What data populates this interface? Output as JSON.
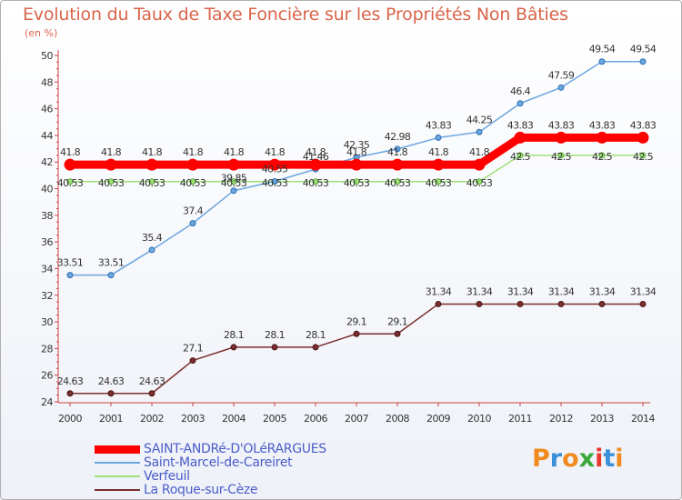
{
  "title": "Evolution du Taux de Taxe Foncière sur les Propriétés Non Bâties",
  "subtitle": "(en %)",
  "logo": {
    "text": "Proxiti",
    "colors": [
      "#f18b1f",
      "#3b8fd8",
      "#f18b1f",
      "#3aa838",
      "#e8372d",
      "#3b8fd8",
      "#f18b1f"
    ]
  },
  "chart_data": {
    "type": "line",
    "x": [
      "2000",
      "2001",
      "2002",
      "2003",
      "2004",
      "2005",
      "2006",
      "2007",
      "2008",
      "2009",
      "2010",
      "2011",
      "2012",
      "2013",
      "2014"
    ],
    "ylim": [
      24,
      50
    ],
    "yticks": [
      24,
      26,
      28,
      30,
      32,
      34,
      36,
      38,
      40,
      42,
      44,
      46,
      48,
      50
    ],
    "grid": false,
    "legend_position": "bottom-left",
    "series": [
      {
        "name": "SAINT-ANDRé-D'OLéRARGUES",
        "color": "#ff0000",
        "values": [
          41.8,
          41.8,
          41.8,
          41.8,
          41.8,
          41.8,
          41.8,
          41.8,
          41.8,
          41.8,
          41.8,
          43.83,
          43.83,
          43.83,
          43.83
        ],
        "labels": [
          "41.8",
          "41.8",
          "41.8",
          "41.8",
          "41.8",
          "41.8",
          "41.8",
          "41.8",
          "41.8",
          "41.8",
          "41.8",
          "43.83",
          "43.83",
          "43.83",
          "43.83"
        ]
      },
      {
        "name": "Saint-Marcel-de-Careiret",
        "color": "#6ca6e0",
        "values": [
          33.51,
          33.51,
          35.4,
          37.4,
          39.85,
          40.55,
          41.46,
          42.35,
          42.98,
          43.83,
          44.25,
          46.4,
          47.59,
          49.54,
          49.54
        ],
        "labels": [
          "33.51",
          "33.51",
          "35.4",
          "37.4",
          "39.85",
          "40.55",
          "41.46",
          "42.35",
          "42.98",
          "43.83",
          "44.25",
          "46.4",
          "47.59",
          "49.54",
          "49.54"
        ]
      },
      {
        "name": "Verfeuil",
        "color": "#9ee078",
        "values": [
          40.53,
          40.53,
          40.53,
          40.53,
          40.53,
          40.53,
          40.53,
          40.53,
          40.53,
          40.53,
          40.53,
          42.5,
          42.5,
          42.5,
          42.5
        ],
        "labels": [
          "40.53",
          "40.53",
          "40.53",
          "40.53",
          "40.53",
          "40.53",
          "40.53",
          "40.53",
          "40.53",
          "40.53",
          "40.53",
          "42.5",
          "42.5",
          "42.5",
          "42.5"
        ]
      },
      {
        "name": "La Roque-sur-Cèze",
        "color": "#7a2e2e",
        "values": [
          24.63,
          24.63,
          24.63,
          27.1,
          28.1,
          28.1,
          28.1,
          29.1,
          29.1,
          31.34,
          31.34,
          31.34,
          31.34,
          31.34,
          31.34
        ],
        "labels": [
          "24.63",
          "24.63",
          "24.63",
          "27.1",
          "28.1",
          "28.1",
          "28.1",
          "29.1",
          "29.1",
          "31.34",
          "31.34",
          "31.34",
          "31.34",
          "31.34",
          "31.34"
        ]
      }
    ]
  }
}
